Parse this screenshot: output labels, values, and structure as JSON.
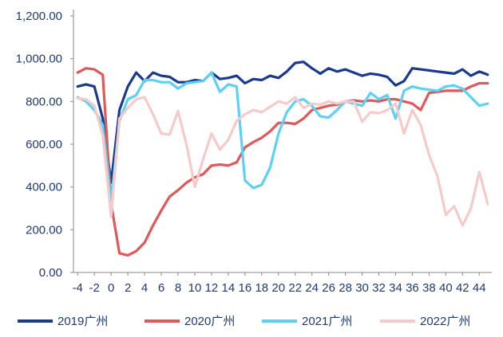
{
  "chart_data": {
    "type": "line",
    "title": "",
    "xlabel": "",
    "ylabel": "",
    "x": [
      -4,
      -3,
      -2,
      -1,
      0,
      1,
      2,
      3,
      4,
      5,
      6,
      7,
      8,
      9,
      10,
      11,
      12,
      13,
      14,
      15,
      16,
      17,
      18,
      19,
      20,
      21,
      22,
      23,
      24,
      25,
      26,
      27,
      28,
      29,
      30,
      31,
      32,
      33,
      34,
      35,
      36,
      37,
      38,
      39,
      40,
      41,
      42,
      43,
      44,
      45
    ],
    "xlim": [
      -4.5,
      45.5
    ],
    "ylim": [
      0,
      1200
    ],
    "y_ticks": [
      0,
      200,
      400,
      600,
      800,
      1000,
      1200
    ],
    "y_tick_labels": [
      "0.00",
      "200.00",
      "400.00",
      "600.00",
      "800.00",
      "1,000.00",
      "1,200.00"
    ],
    "x_ticks": [
      -4,
      -2,
      0,
      2,
      4,
      6,
      8,
      10,
      12,
      14,
      16,
      18,
      20,
      22,
      24,
      26,
      28,
      30,
      32,
      34,
      36,
      38,
      40,
      42,
      44
    ],
    "x_tick_labels": [
      "-4",
      "-2",
      "0",
      "2",
      "4",
      "6",
      "8",
      "10",
      "12",
      "14",
      "16",
      "18",
      "20",
      "22",
      "24",
      "26",
      "28",
      "30",
      "32",
      "34",
      "36",
      "38",
      "40",
      "42",
      "44"
    ],
    "grid": false,
    "legend_position": "bottom",
    "series": [
      {
        "name": "2019广州",
        "color": "#1a3a8f",
        "values": [
          870,
          880,
          870,
          720,
          420,
          760,
          870,
          935,
          895,
          935,
          920,
          915,
          890,
          890,
          900,
          895,
          935,
          905,
          910,
          920,
          885,
          905,
          900,
          920,
          910,
          940,
          980,
          985,
          955,
          930,
          955,
          940,
          950,
          935,
          920,
          930,
          925,
          915,
          875,
          895,
          955,
          950,
          945,
          940,
          935,
          930,
          950,
          920,
          940,
          925
        ]
      },
      {
        "name": "2020广州",
        "color": "#e15859",
        "values": [
          935,
          955,
          950,
          925,
          320,
          90,
          80,
          100,
          140,
          220,
          290,
          355,
          385,
          420,
          445,
          460,
          500,
          505,
          500,
          515,
          585,
          610,
          630,
          660,
          700,
          700,
          695,
          720,
          760,
          770,
          780,
          785,
          800,
          805,
          800,
          805,
          800,
          810,
          810,
          800,
          790,
          760,
          840,
          845,
          850,
          850,
          850,
          870,
          885,
          885
        ]
      },
      {
        "name": "2021广州",
        "color": "#5bd2f5",
        "values": [
          820,
          800,
          760,
          690,
          330,
          710,
          810,
          830,
          900,
          900,
          890,
          890,
          860,
          885,
          890,
          895,
          935,
          845,
          880,
          870,
          430,
          395,
          410,
          490,
          650,
          750,
          800,
          810,
          780,
          730,
          725,
          760,
          800,
          790,
          780,
          840,
          810,
          830,
          720,
          850,
          870,
          860,
          855,
          850,
          870,
          875,
          860,
          820,
          780,
          790
        ]
      },
      {
        "name": "2022广州",
        "color": "#f7caca",
        "values": [
          815,
          810,
          780,
          640,
          260,
          720,
          770,
          810,
          820,
          740,
          650,
          645,
          755,
          600,
          400,
          530,
          650,
          575,
          620,
          710,
          740,
          760,
          750,
          775,
          800,
          790,
          820,
          770,
          790,
          785,
          800,
          790,
          800,
          800,
          705,
          750,
          745,
          760,
          790,
          650,
          760,
          690,
          550,
          450,
          270,
          310,
          220,
          300,
          470,
          320
        ]
      }
    ]
  }
}
